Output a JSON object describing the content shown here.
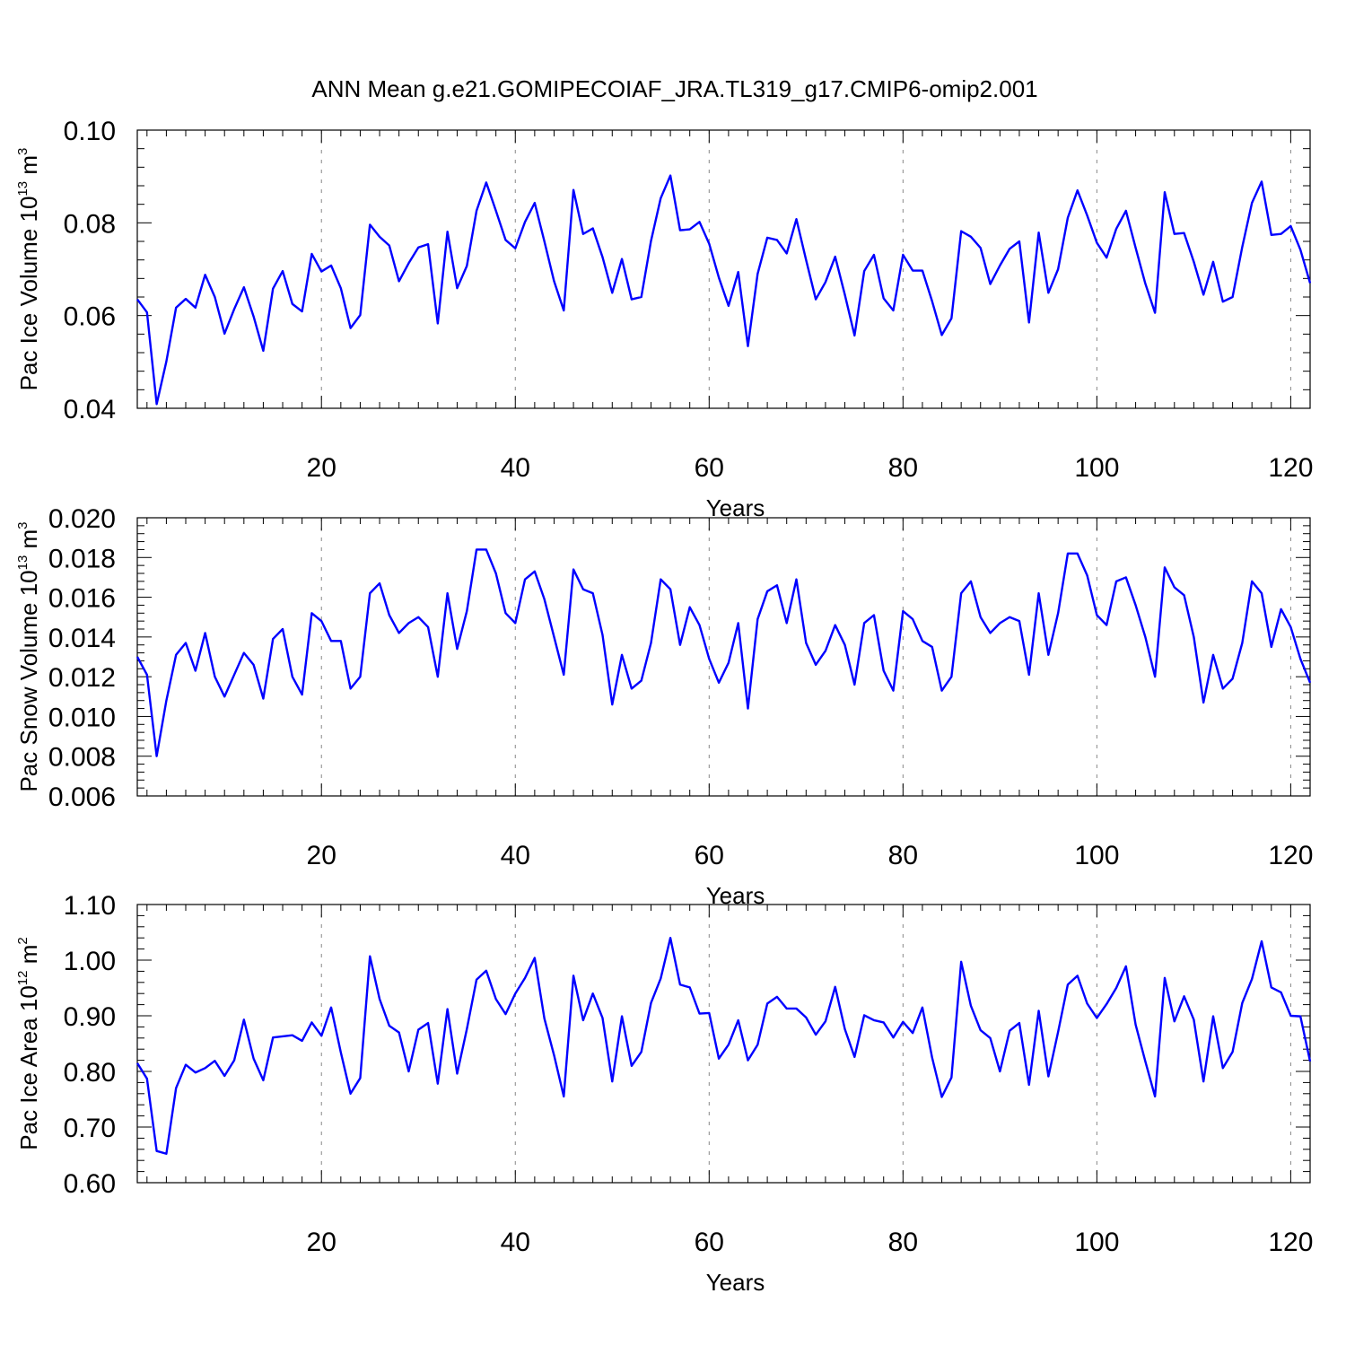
{
  "title": "ANN Mean g.e21.GOMIPECOIAF_JRA.TL319_g17.CMIP6-omip2.001",
  "colors": {
    "line": "#0000ff",
    "axis": "#000000",
    "gridline": "#888888"
  },
  "chart_data": [
    {
      "type": "line",
      "ylabel_base": "Pac Ice Volume 10",
      "ylabel_exp": "13",
      "ylabel_unit": " m",
      "ylabel_unit_exp": "3",
      "xlabel": "Years",
      "xlim": [
        1,
        122
      ],
      "ylim": [
        0.04,
        0.1
      ],
      "xticks": [
        20,
        40,
        60,
        80,
        100,
        120
      ],
      "xtick_labels": [
        "20",
        "40",
        "60",
        "80",
        "100",
        "120"
      ],
      "yticks": [
        0.04,
        0.06,
        0.08,
        0.1
      ],
      "ytick_labels": [
        "0.04",
        "0.06",
        "0.08",
        "0.10"
      ],
      "minor_dy": 0.004,
      "dashed_gridlines_x": [
        20,
        40,
        60,
        80,
        100,
        120
      ],
      "x_start": 1,
      "values": [
        0.0635,
        0.0607,
        0.0409,
        0.0501,
        0.0617,
        0.0636,
        0.0617,
        0.0688,
        0.064,
        0.0561,
        0.0614,
        0.0661,
        0.0598,
        0.0524,
        0.0658,
        0.0696,
        0.0625,
        0.0609,
        0.0733,
        0.0695,
        0.0708,
        0.0659,
        0.0573,
        0.0601,
        0.0796,
        0.077,
        0.0751,
        0.0674,
        0.0713,
        0.0747,
        0.0754,
        0.0583,
        0.0781,
        0.0659,
        0.0707,
        0.0826,
        0.0887,
        0.0826,
        0.0763,
        0.0745,
        0.0802,
        0.0843,
        0.076,
        0.0674,
        0.0611,
        0.0871,
        0.0776,
        0.0788,
        0.0726,
        0.0649,
        0.0722,
        0.0635,
        0.064,
        0.0761,
        0.0853,
        0.0902,
        0.0784,
        0.0786,
        0.0802,
        0.0755,
        0.0682,
        0.0621,
        0.0694,
        0.0534,
        0.069,
        0.0768,
        0.0763,
        0.0734,
        0.0808,
        0.072,
        0.0635,
        0.0672,
        0.0727,
        0.0645,
        0.0557,
        0.0696,
        0.0731,
        0.0637,
        0.0611,
        0.0731,
        0.0697,
        0.0697,
        0.0631,
        0.0558,
        0.0594,
        0.0782,
        0.077,
        0.0746,
        0.0668,
        0.0708,
        0.0744,
        0.076,
        0.0585,
        0.0779,
        0.0649,
        0.07,
        0.0811,
        0.087,
        0.0816,
        0.0757,
        0.0725,
        0.0787,
        0.0826,
        0.0746,
        0.0669,
        0.0606,
        0.0866,
        0.0776,
        0.0778,
        0.0716,
        0.0645,
        0.0716,
        0.063,
        0.064,
        0.0748,
        0.0843,
        0.0889,
        0.0774,
        0.0776,
        0.0793,
        0.0742,
        0.067
      ]
    },
    {
      "type": "line",
      "ylabel_base": "Pac Snow Volume 10",
      "ylabel_exp": "13",
      "ylabel_unit": " m",
      "ylabel_unit_exp": "3",
      "xlabel": "Years",
      "xlim": [
        1,
        122
      ],
      "ylim": [
        0.006,
        0.02
      ],
      "xticks": [
        20,
        40,
        60,
        80,
        100,
        120
      ],
      "xtick_labels": [
        "20",
        "40",
        "60",
        "80",
        "100",
        "120"
      ],
      "yticks": [
        0.006,
        0.008,
        0.01,
        0.012,
        0.014,
        0.016,
        0.018,
        0.02
      ],
      "ytick_labels": [
        "0.006",
        "0.008",
        "0.010",
        "0.012",
        "0.014",
        "0.016",
        "0.018",
        "0.020"
      ],
      "minor_dy": 0.0004,
      "dashed_gridlines_x": [
        20,
        40,
        60,
        80,
        100,
        120
      ],
      "x_start": 1,
      "values": [
        0.013,
        0.0121,
        0.008,
        0.0108,
        0.0131,
        0.0137,
        0.0123,
        0.0142,
        0.012,
        0.011,
        0.0121,
        0.0132,
        0.0126,
        0.0109,
        0.0139,
        0.0144,
        0.012,
        0.0111,
        0.0152,
        0.0148,
        0.0138,
        0.0138,
        0.0114,
        0.012,
        0.0162,
        0.0167,
        0.0151,
        0.0142,
        0.0147,
        0.015,
        0.0145,
        0.012,
        0.0162,
        0.0134,
        0.0153,
        0.0184,
        0.0184,
        0.0172,
        0.0152,
        0.0147,
        0.0169,
        0.0173,
        0.0159,
        0.014,
        0.0121,
        0.0174,
        0.0164,
        0.0162,
        0.0141,
        0.0106,
        0.0131,
        0.0114,
        0.0118,
        0.0137,
        0.0169,
        0.0164,
        0.0136,
        0.0155,
        0.0146,
        0.0129,
        0.0117,
        0.0127,
        0.0147,
        0.0104,
        0.0149,
        0.0163,
        0.0166,
        0.0147,
        0.0169,
        0.0137,
        0.0126,
        0.0133,
        0.0146,
        0.0136,
        0.0116,
        0.0147,
        0.0151,
        0.0123,
        0.0113,
        0.0153,
        0.0149,
        0.0138,
        0.0135,
        0.0113,
        0.012,
        0.0162,
        0.0168,
        0.015,
        0.0142,
        0.0147,
        0.015,
        0.0148,
        0.0121,
        0.0162,
        0.0131,
        0.0152,
        0.0182,
        0.0182,
        0.0171,
        0.0151,
        0.0146,
        0.0168,
        0.017,
        0.0156,
        0.014,
        0.012,
        0.0175,
        0.0165,
        0.0161,
        0.014,
        0.0107,
        0.0131,
        0.0114,
        0.0119,
        0.0137,
        0.0168,
        0.0162,
        0.0135,
        0.0154,
        0.0145,
        0.0129,
        0.0117
      ]
    },
    {
      "type": "line",
      "ylabel_base": "Pac Ice Area 10",
      "ylabel_exp": "12",
      "ylabel_unit": " m",
      "ylabel_unit_exp": "2",
      "xlabel": "Years",
      "xlim": [
        1,
        122
      ],
      "ylim": [
        0.6,
        1.1
      ],
      "xticks": [
        20,
        40,
        60,
        80,
        100,
        120
      ],
      "xtick_labels": [
        "20",
        "40",
        "60",
        "80",
        "100",
        "120"
      ],
      "yticks": [
        0.6,
        0.7,
        0.8,
        0.9,
        1.0,
        1.1
      ],
      "ytick_labels": [
        "0.60",
        "0.70",
        "0.80",
        "0.90",
        "1.00",
        "1.10"
      ],
      "minor_dy": 0.02,
      "dashed_gridlines_x": [
        20,
        40,
        60,
        80,
        100,
        120
      ],
      "x_start": 1,
      "values": [
        0.815,
        0.787,
        0.657,
        0.652,
        0.77,
        0.812,
        0.798,
        0.806,
        0.819,
        0.792,
        0.82,
        0.893,
        0.823,
        0.784,
        0.861,
        0.863,
        0.865,
        0.855,
        0.888,
        0.864,
        0.915,
        0.834,
        0.76,
        0.788,
        1.007,
        0.93,
        0.882,
        0.87,
        0.8,
        0.875,
        0.887,
        0.778,
        0.912,
        0.796,
        0.876,
        0.965,
        0.981,
        0.93,
        0.903,
        0.94,
        0.968,
        1.004,
        0.895,
        0.829,
        0.755,
        0.972,
        0.892,
        0.94,
        0.896,
        0.782,
        0.899,
        0.81,
        0.835,
        0.923,
        0.967,
        1.04,
        0.956,
        0.951,
        0.904,
        0.905,
        0.823,
        0.848,
        0.892,
        0.82,
        0.848,
        0.922,
        0.934,
        0.913,
        0.913,
        0.897,
        0.866,
        0.89,
        0.952,
        0.876,
        0.826,
        0.901,
        0.892,
        0.888,
        0.861,
        0.889,
        0.869,
        0.915,
        0.825,
        0.754,
        0.789,
        0.997,
        0.918,
        0.874,
        0.86,
        0.8,
        0.873,
        0.887,
        0.776,
        0.909,
        0.791,
        0.871,
        0.956,
        0.972,
        0.922,
        0.896,
        0.921,
        0.95,
        0.989,
        0.884,
        0.818,
        0.755,
        0.968,
        0.89,
        0.935,
        0.893,
        0.782,
        0.899,
        0.806,
        0.835,
        0.923,
        0.966,
        1.034,
        0.951,
        0.942,
        0.9,
        0.899,
        0.818
      ]
    }
  ]
}
